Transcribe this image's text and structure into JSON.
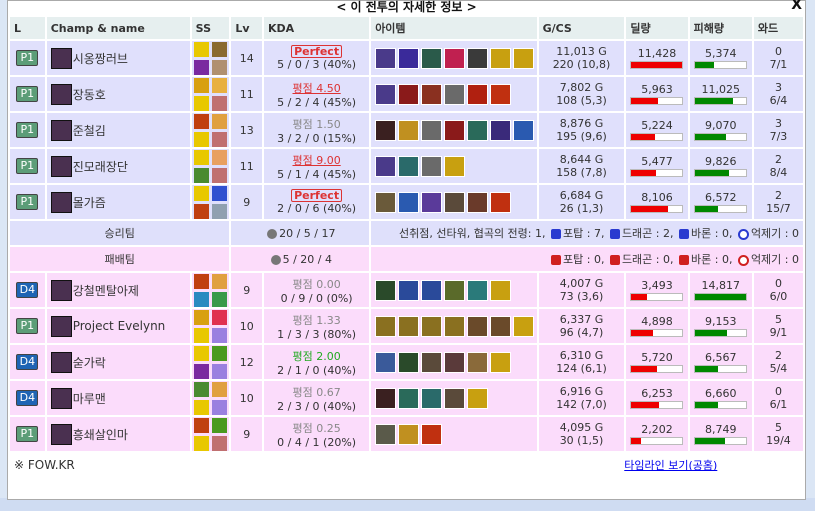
{
  "title": "< 이 전투의 자세한 정보 >",
  "close": "X",
  "headers": [
    "L",
    "Champ & name",
    "SS",
    "Lv",
    "KDA",
    "아이템",
    "G/CS",
    "딜량",
    "피해량",
    "와드"
  ],
  "max_dealt": 11428,
  "max_taken": 14817,
  "colors": {
    "dealt_bar": "#ee0000",
    "taken_bar": "#008800",
    "win_bg": "#e0e0fc",
    "lose_bg": "#fbdcfb"
  },
  "win_players": [
    {
      "tier": "P1",
      "name": "시옹짱러브",
      "ss": [
        "#e8c800",
        "#8a6a30",
        "#7a2aa0",
        "#b09070"
      ],
      "lv": "14",
      "score": "Perfect",
      "score_style": "perfect",
      "kda": "5 / 0 / 3 (40%)",
      "items": [
        "#4a3a8a",
        "#3a2a9a",
        "#2a5a4a",
        "#c02050",
        "#3a3a3a",
        "#c8a010",
        "#c8a010"
      ],
      "gold": "11,013 G",
      "cs": "220 (10,8)",
      "dealt": "11,428",
      "dealt_v": 11428,
      "taken": "5,374",
      "taken_v": 5374,
      "wards": "0",
      "ward_detail": "7/1"
    },
    {
      "tier": "P1",
      "name": "장동호",
      "ss": [
        "#d8a010",
        "#e8b040",
        "#e8c800",
        "#c07070"
      ],
      "lv": "11",
      "score": "평점 4.50",
      "score_style": "red",
      "kda": "5 / 2 / 4 (45%)",
      "items": [
        "#4a3a8a",
        "#8a1a1a",
        "#8a3020",
        "#6a6a6a",
        "#b02010",
        "#c03010"
      ],
      "gold": "7,802 G",
      "cs": "108 (5,3)",
      "dealt": "5,963",
      "dealt_v": 5963,
      "taken": "11,025",
      "taken_v": 11025,
      "wards": "3",
      "ward_detail": "6/4"
    },
    {
      "tier": "P1",
      "name": "준철김",
      "ss": [
        "#c04010",
        "#e0a040",
        "#e8c800",
        "#c07070"
      ],
      "lv": "13",
      "score": "평점 1.50",
      "score_style": "gray",
      "kda": "3 / 2 / 0 (15%)",
      "items": [
        "#3a2020",
        "#c09020",
        "#6a6a6a",
        "#8a1a1a",
        "#2a6a5a",
        "#3a2a7a",
        "#2a5ab0"
      ],
      "gold": "8,876 G",
      "cs": "195 (9,6)",
      "dealt": "5,224",
      "dealt_v": 5224,
      "taken": "9,070",
      "taken_v": 9070,
      "wards": "3",
      "ward_detail": "7/3"
    },
    {
      "tier": "P1",
      "name": "진모래장단",
      "ss": [
        "#e8c800",
        "#e8a060",
        "#4a8a30",
        "#c07070"
      ],
      "lv": "11",
      "score": "평점 9.00",
      "score_style": "red",
      "kda": "5 / 1 / 4 (45%)",
      "items": [
        "#4a3a8a",
        "#2a6a6a",
        "#6a6a6a",
        "#c8a010"
      ],
      "gold": "8,644 G",
      "cs": "158 (7,8)",
      "dealt": "5,477",
      "dealt_v": 5477,
      "taken": "9,826",
      "taken_v": 9826,
      "wards": "2",
      "ward_detail": "8/4"
    },
    {
      "tier": "P1",
      "name": "몰가즘",
      "ss": [
        "#e8c800",
        "#3050d0",
        "#c04010",
        "#90a0b0"
      ],
      "lv": "9",
      "score": "Perfect",
      "score_style": "perfect",
      "kda": "2 / 0 / 6 (40%)",
      "items": [
        "#6a5a3a",
        "#2a5ab0",
        "#5a3a9a",
        "#5a4a3a",
        "#6a3a2a",
        "#c03010"
      ],
      "gold": "6,684 G",
      "cs": "26 (1,3)",
      "dealt": "8,106",
      "dealt_v": 8106,
      "taken": "6,572",
      "taken_v": 6572,
      "wards": "2",
      "ward_detail": "15/7"
    }
  ],
  "win_summary": {
    "label": "승리팀",
    "kda": "20 / 5 / 17",
    "objectives": "선취점, 선타워, 협곡의 전령: 1,",
    "tower": "포탑 : 7,",
    "dragon": "드래곤 : 2,",
    "baron": "바론 : 0,",
    "inhib": "억제기 : 0",
    "color": "#2a3ad0"
  },
  "lose_summary": {
    "label": "패배팀",
    "kda": "5 / 20 / 4",
    "tower": "포탑 : 0,",
    "dragon": "드래곤 : 0,",
    "baron": "바론 : 0,",
    "inhib": "억제기 : 0",
    "color": "#d02020"
  },
  "lose_players": [
    {
      "tier": "D4",
      "name": "강철멘탈아제",
      "ss": [
        "#c04010",
        "#e0a040",
        "#2a8ac0",
        "#3a9a4a"
      ],
      "lv": "9",
      "score": "평점 0.00",
      "score_style": "gray",
      "kda": "0 / 9 / 0 (0%)",
      "items": [
        "#2a4a2a",
        "#2a4a9a",
        "#2a4a9a",
        "#5a6a2a",
        "#2a7a7a",
        "#c8a010"
      ],
      "gold": "4,007 G",
      "cs": "73 (3,6)",
      "dealt": "3,493",
      "dealt_v": 3493,
      "taken": "14,817",
      "taken_v": 14817,
      "wards": "0",
      "ward_detail": "6/0"
    },
    {
      "tier": "P1",
      "name": "Project Evelynn",
      "ss": [
        "#d8a010",
        "#e03050",
        "#e8c800",
        "#9a80e0"
      ],
      "lv": "10",
      "score": "평점 1.33",
      "score_style": "gray",
      "kda": "1 / 3 / 3 (80%)",
      "items": [
        "#8a7020",
        "#8a7020",
        "#8a7020",
        "#8a7020",
        "#6a4a2a",
        "#6a4a2a",
        "#c8a010"
      ],
      "gold": "6,337 G",
      "cs": "96 (4,7)",
      "dealt": "4,898",
      "dealt_v": 4898,
      "taken": "9,153",
      "taken_v": 9153,
      "wards": "5",
      "ward_detail": "9/1"
    },
    {
      "tier": "D4",
      "name": "숟가락",
      "ss": [
        "#e8c800",
        "#4a9a20",
        "#7a2aa0",
        "#9a80e0"
      ],
      "lv": "12",
      "score": "평점 2.00",
      "score_style": "green",
      "kda": "2 / 1 / 0 (40%)",
      "items": [
        "#3a5a9a",
        "#2a4a2a",
        "#5a4a3a",
        "#5a3a3a",
        "#8a6a3a",
        "#c8a010"
      ],
      "gold": "6,310 G",
      "cs": "124 (6,1)",
      "dealt": "5,720",
      "dealt_v": 5720,
      "taken": "6,567",
      "taken_v": 6567,
      "wards": "2",
      "ward_detail": "5/4"
    },
    {
      "tier": "D4",
      "name": "마루맨",
      "ss": [
        "#4a8a30",
        "#e0a040",
        "#e8c800",
        "#9a80e0"
      ],
      "lv": "10",
      "score": "평점 0.67",
      "score_style": "gray",
      "kda": "2 / 3 / 0 (40%)",
      "items": [
        "#3a2020",
        "#2a6a5a",
        "#2a6a6a",
        "#5a4a3a",
        "#c8a010"
      ],
      "gold": "6,916 G",
      "cs": "142 (7,0)",
      "dealt": "6,253",
      "dealt_v": 6253,
      "taken": "6,660",
      "taken_v": 6660,
      "wards": "0",
      "ward_detail": "6/1"
    },
    {
      "tier": "P1",
      "name": "흥쇄살인마",
      "ss": [
        "#c04010",
        "#4a9a20",
        "#e8c800",
        "#c07070"
      ],
      "lv": "9",
      "score": "평점 0.25",
      "score_style": "gray",
      "kda": "0 / 4 / 1 (20%)",
      "items": [
        "#5a5a4a",
        "#c09020",
        "#c03010"
      ],
      "gold": "4,095 G",
      "cs": "30 (1,5)",
      "dealt": "2,202",
      "dealt_v": 2202,
      "taken": "8,749",
      "taken_v": 8749,
      "wards": "5",
      "ward_detail": "19/4"
    }
  ],
  "footer": {
    "source": "※ FOW.KR",
    "timeline_link": "타임라인 보기(공홈)"
  }
}
